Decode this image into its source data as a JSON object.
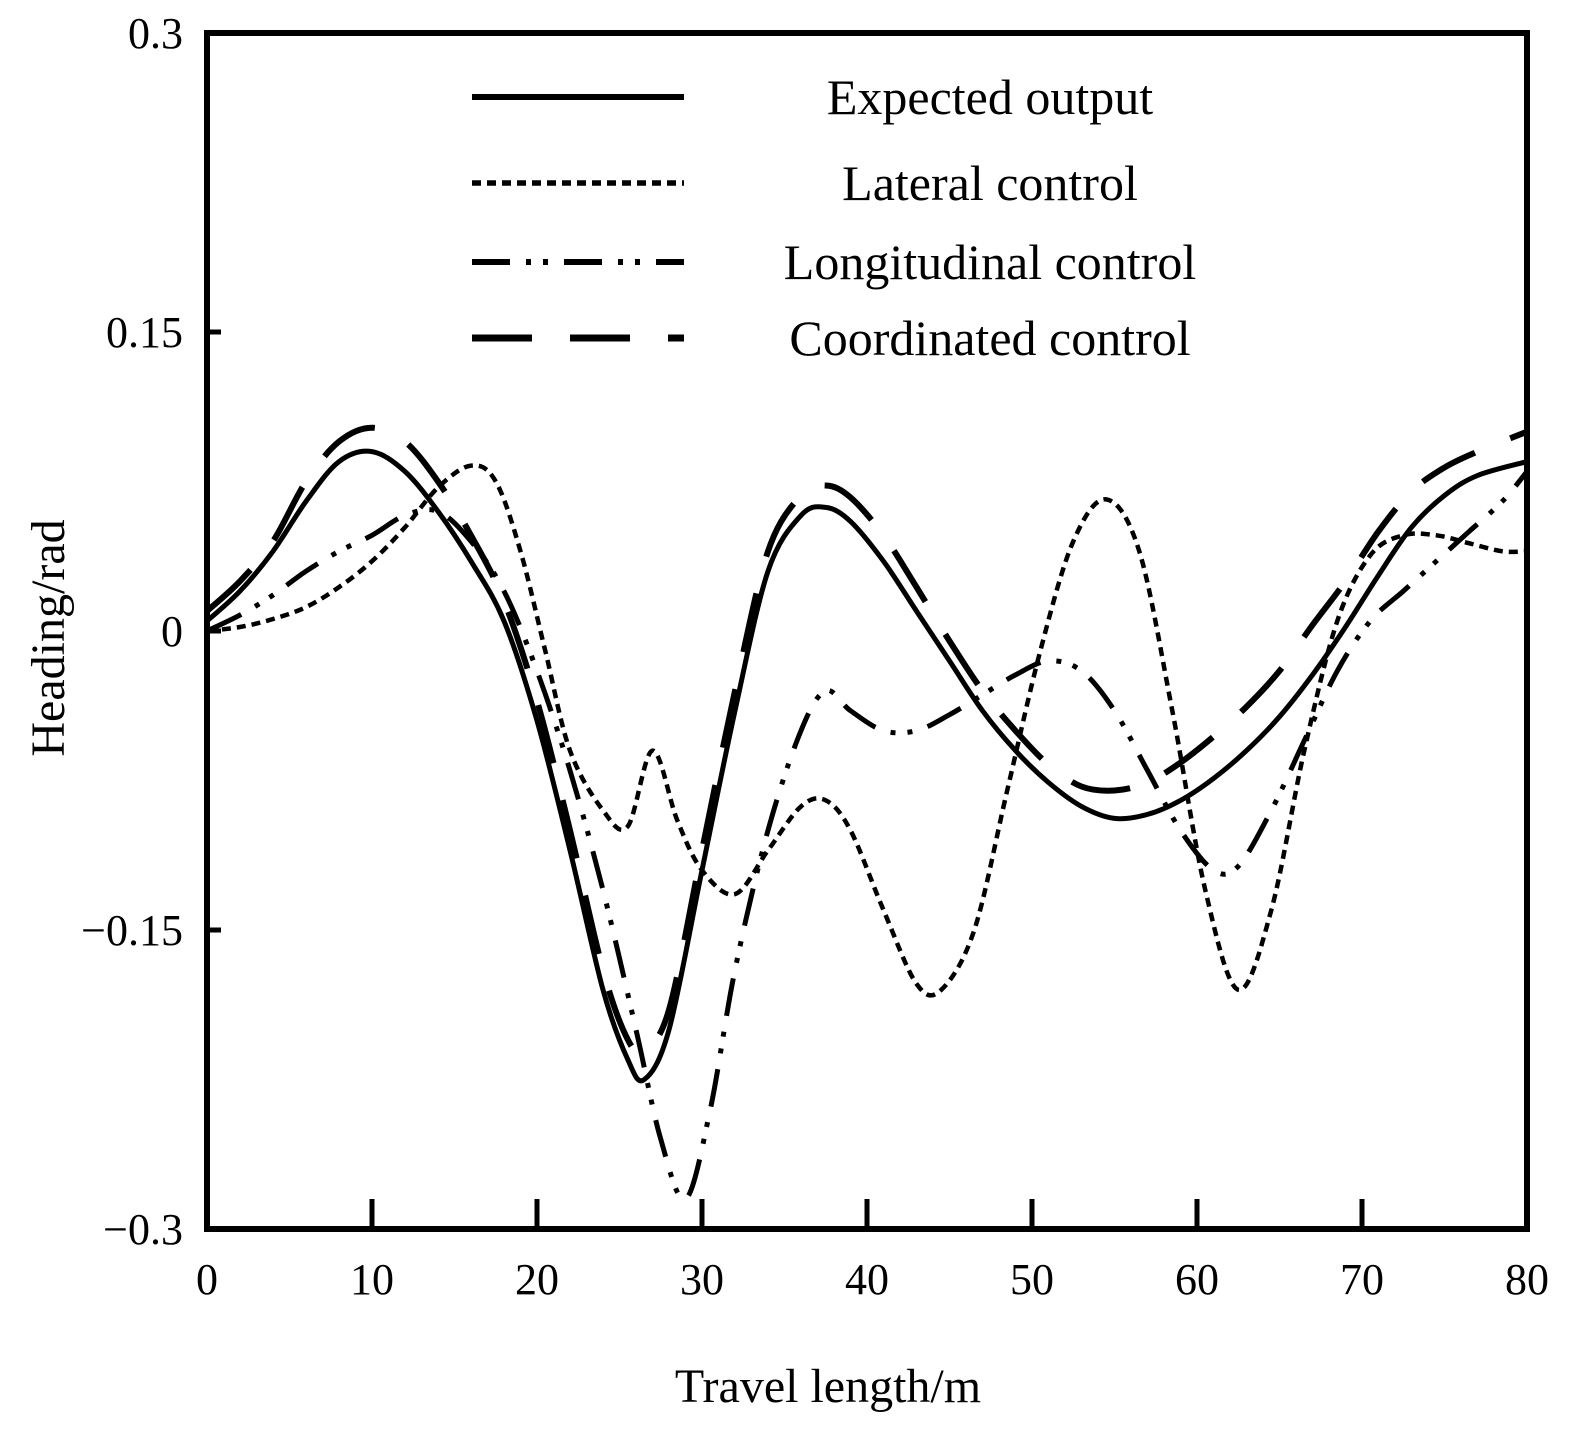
{
  "chart_data": {
    "type": "line",
    "title": "",
    "xlabel": "Travel length/m",
    "ylabel": "Heading/rad",
    "xlim": [
      0,
      80
    ],
    "ylim": [
      -0.3,
      0.3
    ],
    "x_ticks": [
      0,
      10,
      20,
      30,
      40,
      50,
      60,
      70,
      80
    ],
    "x_tick_labels": [
      "0",
      "10",
      "20",
      "30",
      "40",
      "50",
      "60",
      "70",
      "80"
    ],
    "y_ticks": [
      0.3,
      0.15,
      0,
      -0.15,
      -0.3
    ],
    "y_tick_labels": [
      "0.3",
      "0.15",
      "0",
      "−0.15",
      "−0.3"
    ],
    "grid": false,
    "legend_position": "top-center",
    "series": [
      {
        "name": "Expected output",
        "style": "solid",
        "x": [
          0,
          2,
          4,
          6,
          8,
          10,
          12,
          14,
          16,
          18,
          20,
          22,
          24,
          25.5,
          26.5,
          28,
          30,
          32,
          34,
          36,
          37.5,
          39,
          41,
          43,
          45,
          47,
          49,
          51,
          53,
          55,
          57,
          59,
          61,
          63,
          65,
          67,
          69,
          71,
          73,
          75,
          77,
          80
        ],
        "y": [
          0.005,
          0.02,
          0.04,
          0.065,
          0.085,
          0.09,
          0.08,
          0.06,
          0.035,
          0.005,
          -0.045,
          -0.11,
          -0.18,
          -0.215,
          -0.225,
          -0.2,
          -0.12,
          -0.04,
          0.03,
          0.058,
          0.062,
          0.055,
          0.035,
          0.01,
          -0.015,
          -0.04,
          -0.06,
          -0.076,
          -0.088,
          -0.094,
          -0.092,
          -0.085,
          -0.074,
          -0.06,
          -0.043,
          -0.022,
          0.002,
          0.028,
          0.052,
          0.068,
          0.078,
          0.085
        ]
      },
      {
        "name": "Lateral control",
        "style": "dotted",
        "x": [
          0,
          2,
          4,
          6,
          8,
          10,
          12,
          14,
          16,
          17.5,
          19,
          20.5,
          22,
          24,
          25.5,
          27,
          28.5,
          30,
          32,
          34,
          36,
          37.5,
          39,
          41,
          43,
          44.5,
          46.5,
          48.5,
          50.5,
          52.5,
          54.5,
          56.5,
          58.5,
          60.5,
          62.5,
          64.5,
          66.5,
          68.5,
          70.5,
          72.5,
          74.5,
          76.5,
          78.5,
          80
        ],
        "y": [
          0.0,
          0.002,
          0.006,
          0.012,
          0.022,
          0.035,
          0.052,
          0.072,
          0.083,
          0.075,
          0.04,
          -0.01,
          -0.06,
          -0.09,
          -0.098,
          -0.06,
          -0.095,
          -0.12,
          -0.132,
          -0.11,
          -0.088,
          -0.085,
          -0.1,
          -0.14,
          -0.177,
          -0.18,
          -0.15,
          -0.08,
          -0.01,
          0.045,
          0.066,
          0.04,
          -0.04,
          -0.13,
          -0.18,
          -0.14,
          -0.06,
          0.005,
          0.038,
          0.048,
          0.048,
          0.044,
          0.04,
          0.04
        ]
      },
      {
        "name": "Longitudinal control",
        "style": "dash-dot-dot",
        "x": [
          0,
          2,
          4,
          6,
          8,
          10,
          12,
          14,
          16,
          18,
          20,
          22,
          24,
          26,
          27.5,
          29,
          30.5,
          32,
          34,
          36,
          37.5,
          39,
          41,
          43,
          45,
          47,
          49,
          51,
          53,
          55,
          57,
          59,
          61,
          62.5,
          64.5,
          66.5,
          68.5,
          70.5,
          72.5,
          74.5,
          76.5,
          78.5,
          80
        ],
        "y": [
          0.0,
          0.008,
          0.018,
          0.03,
          0.04,
          0.048,
          0.058,
          0.06,
          0.045,
          0.02,
          -0.02,
          -0.07,
          -0.13,
          -0.2,
          -0.255,
          -0.285,
          -0.24,
          -0.17,
          -0.1,
          -0.05,
          -0.03,
          -0.04,
          -0.05,
          -0.05,
          -0.042,
          -0.032,
          -0.022,
          -0.015,
          -0.02,
          -0.04,
          -0.07,
          -0.1,
          -0.12,
          -0.118,
          -0.09,
          -0.055,
          -0.02,
          0.005,
          0.02,
          0.035,
          0.05,
          0.065,
          0.08
        ]
      },
      {
        "name": "Coordinated control",
        "style": "long-dash",
        "x": [
          0,
          2,
          4,
          6,
          8,
          10,
          12,
          14,
          16,
          18,
          20,
          22,
          24,
          25.5,
          26.5,
          28,
          30,
          32,
          34,
          36,
          37.5,
          39,
          41,
          43,
          45,
          47,
          49,
          51,
          53,
          55,
          57,
          59,
          61,
          63,
          65,
          67,
          69,
          71,
          73,
          75,
          77,
          80
        ],
        "y": [
          0.01,
          0.025,
          0.045,
          0.075,
          0.095,
          0.102,
          0.095,
          0.075,
          0.048,
          0.015,
          -0.035,
          -0.1,
          -0.17,
          -0.205,
          -0.21,
          -0.19,
          -0.11,
          -0.03,
          0.04,
          0.068,
          0.073,
          0.067,
          0.048,
          0.022,
          -0.005,
          -0.03,
          -0.05,
          -0.067,
          -0.078,
          -0.08,
          -0.076,
          -0.066,
          -0.053,
          -0.038,
          -0.02,
          0.003,
          0.025,
          0.05,
          0.07,
          0.082,
          0.09,
          0.1
        ]
      }
    ]
  }
}
